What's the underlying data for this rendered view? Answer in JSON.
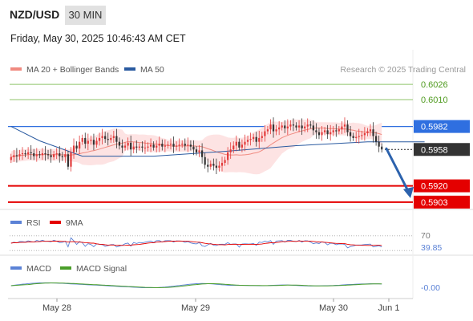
{
  "header": {
    "pair": "NZD/USD",
    "timeframe": "30 MIN",
    "datetime": "Friday, May 30, 2025 10:46:43 AM CET"
  },
  "legend": {
    "ma20": "MA 20 + Bollinger Bands",
    "ma50": "MA 50",
    "credit": "Research © 2025 Trading Central"
  },
  "colors": {
    "ma20": "#f08a80",
    "ma50": "#2a5aa0",
    "bullish": "#e23b3b",
    "bearish": "#333333",
    "band_fill": "#fde3e3",
    "pivot_line": "#2f6fe0",
    "target_green": "#8fc46a",
    "support_red": "#e40000",
    "arrow": "#2c62ad",
    "rsi": "#5b82d6",
    "rsi_ma": "#e40000",
    "macd": "#5b82d6",
    "macd_signal": "#4a9e2a"
  },
  "chart_data": [
    {
      "type": "candlestick",
      "title": "NZD/USD",
      "x_ticks": [
        "May 28",
        "May 29",
        "May 30",
        "Jun 1"
      ],
      "ylim": [
        0.5897,
        0.6032
      ],
      "levels": [
        {
          "value": 0.6026,
          "label": "0.6026",
          "kind": "target"
        },
        {
          "value": 0.601,
          "label": "0.6010",
          "kind": "target"
        },
        {
          "value": 0.5982,
          "label": "0.5982",
          "kind": "pivot"
        },
        {
          "value": 0.5958,
          "label": "0.5958",
          "kind": "last"
        },
        {
          "value": 0.592,
          "label": "0.5920",
          "kind": "support"
        },
        {
          "value": 0.5903,
          "label": "0.5903",
          "kind": "support"
        }
      ],
      "series": [
        {
          "name": "MA 20 + Bollinger Bands"
        },
        {
          "name": "MA 50"
        }
      ],
      "ma50_trend": [
        [
          0,
          0.5982
        ],
        [
          10,
          0.5967
        ],
        [
          25,
          0.5951
        ],
        [
          50,
          0.5951
        ],
        [
          75,
          0.5956
        ],
        [
          100,
          0.5962
        ],
        [
          125,
          0.5966
        ],
        [
          145,
          0.5966
        ]
      ],
      "closes": [
        0.595,
        0.5952,
        0.5951,
        0.5953,
        0.5954,
        0.5953,
        0.5955,
        0.5954,
        0.5951,
        0.5953,
        0.5952,
        0.5954,
        0.5953,
        0.5952,
        0.595,
        0.5953,
        0.5954,
        0.5951,
        0.595,
        0.5953,
        0.594,
        0.5955,
        0.5962,
        0.5959,
        0.5966,
        0.597,
        0.5964,
        0.5967,
        0.5968,
        0.5963,
        0.5967,
        0.597,
        0.5972,
        0.5969,
        0.5968,
        0.597,
        0.5972,
        0.5966,
        0.5962,
        0.596,
        0.5962,
        0.5965,
        0.5958,
        0.5961,
        0.596,
        0.5961,
        0.596,
        0.596,
        0.5961,
        0.5963,
        0.596,
        0.5962,
        0.5964,
        0.5961,
        0.5962,
        0.5963,
        0.5964,
        0.5961,
        0.5962,
        0.5963,
        0.5964,
        0.5962,
        0.5963,
        0.5961,
        0.5958,
        0.5955,
        0.5957,
        0.595,
        0.5942,
        0.594,
        0.5943,
        0.5941,
        0.5939,
        0.5941,
        0.5944,
        0.5947,
        0.5955,
        0.5958,
        0.5962,
        0.5966,
        0.596,
        0.5963,
        0.5966,
        0.5968,
        0.5969,
        0.5971,
        0.5966,
        0.597,
        0.5972,
        0.5977,
        0.5979,
        0.5984,
        0.5977,
        0.5979,
        0.5981,
        0.5983,
        0.598,
        0.5982,
        0.5984,
        0.5983,
        0.5981,
        0.5983,
        0.598,
        0.5982,
        0.5984,
        0.5983,
        0.5978,
        0.5976,
        0.5973,
        0.5976,
        0.5978,
        0.5974,
        0.5976,
        0.5978,
        0.5977,
        0.5979,
        0.5982,
        0.5984,
        0.5976,
        0.5972,
        0.597,
        0.5971,
        0.5972,
        0.5973,
        0.5975,
        0.5977,
        0.5979,
        0.5972,
        0.5966,
        0.5961,
        0.5958
      ],
      "projection": {
        "from": 0.5958,
        "to": 0.5908
      }
    },
    {
      "type": "line",
      "title": "RSI",
      "series": [
        {
          "name": "RSI"
        },
        {
          "name": "9MA"
        }
      ],
      "levels": [
        70,
        30
      ],
      "last_value": 39.85,
      "last_label": "39.85",
      "level_labels": [
        "70"
      ]
    },
    {
      "type": "line",
      "title": "MACD",
      "series": [
        {
          "name": "MACD"
        },
        {
          "name": "MACD Signal"
        }
      ],
      "last_label": "-0.00"
    }
  ]
}
